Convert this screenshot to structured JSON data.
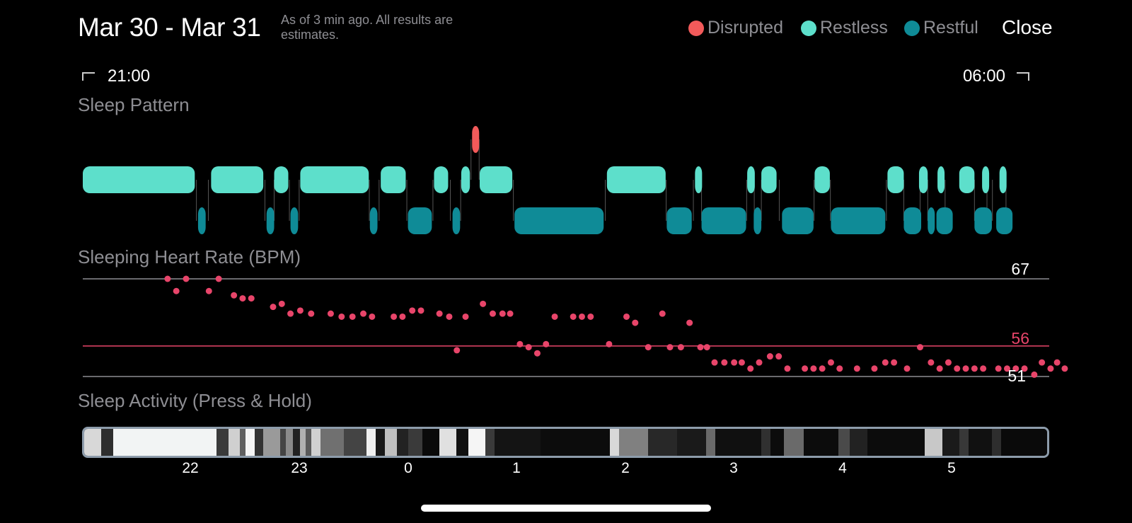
{
  "header": {
    "title": "Mar 30 - Mar 31",
    "subtitle": "As of 3 min ago. All results are estimates.",
    "close_label": "Close"
  },
  "legend": [
    {
      "label": "Disrupted",
      "color": "#f25a5a"
    },
    {
      "label": "Restless",
      "color": "#5ddfcb"
    },
    {
      "label": "Restful",
      "color": "#0f8b97"
    }
  ],
  "time_range": {
    "start": "21:00",
    "end": "06:00"
  },
  "sections": {
    "sleep_pattern": "Sleep Pattern",
    "heart_rate": "Sleeping Heart Rate (BPM)",
    "activity": "Sleep Activity (Press & Hold)"
  },
  "heart_rate": {
    "max_label": "67",
    "avg_label": "56",
    "min_label": "51",
    "max": 67,
    "avg": 56,
    "min": 51,
    "line_color": "#8e8e93",
    "avg_color": "#e8456a",
    "points": [
      [
        21.78,
        67
      ],
      [
        21.86,
        65
      ],
      [
        21.95,
        67
      ],
      [
        22.16,
        65
      ],
      [
        22.25,
        67
      ],
      [
        22.39,
        64.3
      ],
      [
        22.47,
        63.8
      ],
      [
        22.55,
        63.8
      ],
      [
        22.75,
        62.4
      ],
      [
        22.83,
        62.9
      ],
      [
        22.91,
        61.3
      ],
      [
        23.0,
        61.8
      ],
      [
        23.1,
        61.3
      ],
      [
        23.28,
        61.3
      ],
      [
        23.38,
        60.8
      ],
      [
        23.48,
        60.8
      ],
      [
        23.58,
        61.3
      ],
      [
        23.66,
        60.8
      ],
      [
        23.86,
        60.8
      ],
      [
        23.94,
        60.8
      ],
      [
        24.03,
        61.8
      ],
      [
        24.11,
        61.8
      ],
      [
        24.28,
        61.3
      ],
      [
        24.37,
        60.8
      ],
      [
        24.44,
        55.3
      ],
      [
        24.52,
        60.8
      ],
      [
        24.68,
        62.9
      ],
      [
        24.77,
        61.3
      ],
      [
        24.86,
        61.3
      ],
      [
        24.93,
        61.3
      ],
      [
        25.02,
        56.3
      ],
      [
        25.1,
        55.8
      ],
      [
        25.18,
        54.8
      ],
      [
        25.26,
        56.3
      ],
      [
        25.34,
        60.8
      ],
      [
        25.51,
        60.8
      ],
      [
        25.59,
        60.8
      ],
      [
        25.67,
        60.8
      ],
      [
        25.84,
        56.3
      ],
      [
        26.0,
        60.8
      ],
      [
        26.08,
        59.8
      ],
      [
        26.2,
        55.8
      ],
      [
        26.33,
        61.3
      ],
      [
        26.4,
        55.8
      ],
      [
        26.5,
        55.8
      ],
      [
        26.58,
        59.8
      ],
      [
        26.68,
        55.8
      ],
      [
        26.74,
        55.8
      ],
      [
        26.81,
        53.3
      ],
      [
        26.9,
        53.3
      ],
      [
        26.99,
        53.3
      ],
      [
        27.06,
        53.3
      ],
      [
        27.14,
        52.3
      ],
      [
        27.22,
        53.3
      ],
      [
        27.32,
        54.3
      ],
      [
        27.4,
        54.3
      ],
      [
        27.48,
        52.3
      ],
      [
        27.64,
        52.3
      ],
      [
        27.72,
        52.3
      ],
      [
        27.8,
        52.3
      ],
      [
        27.88,
        53.3
      ],
      [
        27.96,
        52.3
      ],
      [
        28.12,
        52.3
      ],
      [
        28.28,
        52.3
      ],
      [
        28.38,
        53.3
      ],
      [
        28.46,
        53.3
      ],
      [
        28.58,
        52.3
      ],
      [
        28.7,
        55.8
      ],
      [
        28.8,
        53.3
      ],
      [
        28.88,
        52.3
      ],
      [
        28.96,
        53.3
      ],
      [
        29.04,
        52.3
      ],
      [
        29.12,
        52.3
      ],
      [
        29.2,
        52.3
      ],
      [
        29.28,
        52.3
      ],
      [
        29.42,
        52.3
      ],
      [
        29.5,
        52.3
      ],
      [
        29.58,
        52.3
      ],
      [
        29.66,
        52.3
      ],
      [
        29.75,
        51.3
      ],
      [
        29.82,
        53.3
      ],
      [
        29.9,
        52.3
      ],
      [
        29.96,
        53.3
      ],
      [
        30.03,
        52.3
      ]
    ]
  },
  "sleep_pattern": {
    "restless": [
      [
        21.0,
        22.03
      ],
      [
        22.18,
        22.66
      ],
      [
        22.76,
        22.89
      ],
      [
        23.0,
        23.63
      ],
      [
        23.74,
        23.97
      ],
      [
        24.23,
        24.36
      ],
      [
        24.48,
        24.56
      ],
      [
        24.65,
        24.95
      ],
      [
        25.82,
        26.36
      ],
      [
        26.63,
        26.69
      ],
      [
        27.11,
        27.18
      ],
      [
        27.24,
        27.38
      ],
      [
        27.73,
        27.87
      ],
      [
        28.4,
        28.55
      ],
      [
        28.69,
        28.77
      ],
      [
        28.86,
        28.92
      ],
      [
        29.06,
        29.2
      ],
      [
        29.27,
        29.33
      ],
      [
        29.43,
        29.49
      ]
    ],
    "restful": [
      [
        22.06,
        22.13
      ],
      [
        22.69,
        22.76
      ],
      [
        22.91,
        22.98
      ],
      [
        23.64,
        23.71
      ],
      [
        23.99,
        24.21
      ],
      [
        24.4,
        24.47
      ],
      [
        24.97,
        25.79
      ],
      [
        26.37,
        26.6
      ],
      [
        26.69,
        27.1
      ],
      [
        27.17,
        27.24
      ],
      [
        27.43,
        27.72
      ],
      [
        27.88,
        28.38
      ],
      [
        28.55,
        28.71
      ],
      [
        28.77,
        28.83
      ],
      [
        28.85,
        29.0
      ],
      [
        29.2,
        29.36
      ],
      [
        29.4,
        29.55
      ]
    ],
    "disrupted": [
      [
        24.58,
        24.64
      ]
    ]
  },
  "activity": {
    "segments": [
      [
        "#d8d8d8",
        0.15
      ],
      [
        "#2e2e2e",
        0.1
      ],
      [
        "#f2f4f4",
        0.9
      ],
      [
        "#3a3a3a",
        0.1
      ],
      [
        "#d0d0d0",
        0.1
      ],
      [
        "#606060",
        0.05
      ],
      [
        "#f5f5f5",
        0.08
      ],
      [
        "#333",
        0.07
      ],
      [
        "#9a9a9a",
        0.15
      ],
      [
        "#444",
        0.05
      ],
      [
        "#8a8a8a",
        0.06
      ],
      [
        "#222",
        0.06
      ],
      [
        "#b0b0b0",
        0.05
      ],
      [
        "#5a5a5a",
        0.05
      ],
      [
        "#d0d0d0",
        0.08
      ],
      [
        "#707070",
        0.2
      ],
      [
        "#444",
        0.2
      ],
      [
        "#f0f0f0",
        0.08
      ],
      [
        "#181818",
        0.08
      ],
      [
        "#c0c0c0",
        0.1
      ],
      [
        "#222",
        0.1
      ],
      [
        "#3a3a3a",
        0.12
      ],
      [
        "#0a0a0a",
        0.15
      ],
      [
        "#e0e0e0",
        0.15
      ],
      [
        "#111",
        0.1
      ],
      [
        "#f5f5f5",
        0.15
      ],
      [
        "#3a3a3a",
        0.08
      ],
      [
        "#141414",
        0.4
      ],
      [
        "#0c0c0c",
        0.6
      ],
      [
        "#d8d8d8",
        0.08
      ],
      [
        "#808080",
        0.25
      ],
      [
        "#282828",
        0.25
      ],
      [
        "#1a1a1a",
        0.25
      ],
      [
        "#6a6a6a",
        0.08
      ],
      [
        "#101010",
        0.4
      ],
      [
        "#303030",
        0.08
      ],
      [
        "#0c0c0c",
        0.12
      ],
      [
        "#6a6a6a",
        0.17
      ],
      [
        "#0c0c0c",
        0.3
      ],
      [
        "#4a4a4a",
        0.1
      ],
      [
        "#222",
        0.15
      ],
      [
        "#0c0c0c",
        0.5
      ],
      [
        "#c8c8c8",
        0.15
      ],
      [
        "#1a1a1a",
        0.15
      ],
      [
        "#383838",
        0.08
      ],
      [
        "#111",
        0.2
      ],
      [
        "#2e2e2e",
        0.08
      ],
      [
        "#0a0a0a",
        0.4
      ]
    ]
  },
  "axis_ticks": [
    "22",
    "23",
    "0",
    "1",
    "2",
    "3",
    "4",
    "5"
  ]
}
